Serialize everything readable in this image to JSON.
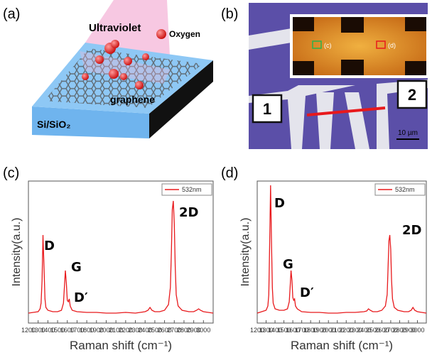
{
  "panel_labels": [
    "(a)",
    "(b)",
    "(c)",
    "(d)"
  ],
  "illustration": {
    "beam": "Ultraviolet",
    "legend": "Oxygen",
    "layer": "graphene",
    "substrate": "Si/SiO₂"
  },
  "micrograph": {
    "electrodes": [
      "1",
      "2"
    ],
    "inset_boxes": [
      "(c)",
      "(d)"
    ],
    "scale_bar": "10 µm"
  },
  "chart_data": [
    {
      "type": "line",
      "xlabel": "Raman shift (cm⁻¹)",
      "ylabel": "Intensity(a.u.)",
      "x": [
        1200,
        1250,
        1300,
        1320,
        1330,
        1340,
        1350,
        1360,
        1370,
        1380,
        1400,
        1450,
        1500,
        1540,
        1560,
        1570,
        1580,
        1590,
        1600,
        1610,
        1620,
        1630,
        1650,
        1700,
        1800,
        1900,
        2000,
        2100,
        2200,
        2300,
        2400,
        2430,
        2450,
        2470,
        2500,
        2550,
        2600,
        2640,
        2660,
        2670,
        2680,
        2690,
        2700,
        2710,
        2720,
        2740,
        2780,
        2850,
        2900,
        2930,
        2950,
        2970,
        3000,
        3050,
        3100
      ],
      "series": [
        {
          "name": "532nm",
          "color": "#e8191c",
          "values": [
            7,
            7.5,
            8,
            10,
            14,
            30,
            62,
            40,
            17,
            11,
            9,
            8,
            8,
            9,
            14,
            25,
            37,
            28,
            16,
            15,
            17,
            12,
            9,
            8,
            7.5,
            7.5,
            7,
            7,
            7.5,
            7,
            8,
            9,
            11,
            9,
            8,
            8,
            9,
            13,
            25,
            50,
            80,
            86,
            70,
            40,
            20,
            12,
            9,
            8,
            8,
            9,
            10,
            9,
            8,
            7.5,
            7
          ]
        }
      ],
      "annotations": [
        "D",
        "G",
        "D′",
        "2D"
      ],
      "xlim": [
        1200,
        3100
      ],
      "ylim": [
        0,
        100
      ],
      "xticks": [
        1200,
        1300,
        1400,
        1500,
        1600,
        1700,
        1800,
        1900,
        2000,
        2100,
        2200,
        2300,
        2400,
        2500,
        2600,
        2700,
        2800,
        2900,
        3000
      ]
    },
    {
      "type": "line",
      "xlabel": "Raman shift (cm⁻¹)",
      "ylabel": "Intensity(a.u.)",
      "x": [
        1200,
        1250,
        1300,
        1320,
        1330,
        1340,
        1350,
        1360,
        1370,
        1380,
        1400,
        1450,
        1500,
        1540,
        1560,
        1570,
        1580,
        1590,
        1600,
        1610,
        1620,
        1630,
        1650,
        1700,
        1800,
        1900,
        2000,
        2100,
        2200,
        2300,
        2400,
        2430,
        2450,
        2470,
        2500,
        2550,
        2600,
        2640,
        2660,
        2670,
        2680,
        2690,
        2700,
        2710,
        2720,
        2740,
        2780,
        2850,
        2900,
        2930,
        2950,
        2970,
        3000,
        3050,
        3100
      ],
      "series": [
        {
          "name": "532nm",
          "color": "#e8191c",
          "values": [
            7,
            8,
            9,
            12,
            20,
            55,
            97,
            60,
            25,
            14,
            10,
            9,
            9,
            10,
            15,
            25,
            37,
            30,
            18,
            16,
            17,
            12,
            10,
            8,
            7.5,
            7.5,
            7,
            7,
            7.5,
            7.5,
            8,
            8.5,
            10,
            9,
            8,
            8,
            9,
            12,
            20,
            38,
            58,
            62,
            52,
            30,
            17,
            11,
            9,
            8,
            8,
            9,
            11,
            9,
            8,
            7.5,
            7
          ]
        }
      ],
      "annotations": [
        "D",
        "G",
        "D′",
        "2D"
      ],
      "xlim": [
        1200,
        3100
      ],
      "ylim": [
        0,
        100
      ],
      "xticks": [
        1200,
        1300,
        1400,
        1500,
        1600,
        1700,
        1800,
        1900,
        2000,
        2100,
        2200,
        2300,
        2400,
        2500,
        2600,
        2700,
        2800,
        2900,
        3000
      ]
    }
  ]
}
